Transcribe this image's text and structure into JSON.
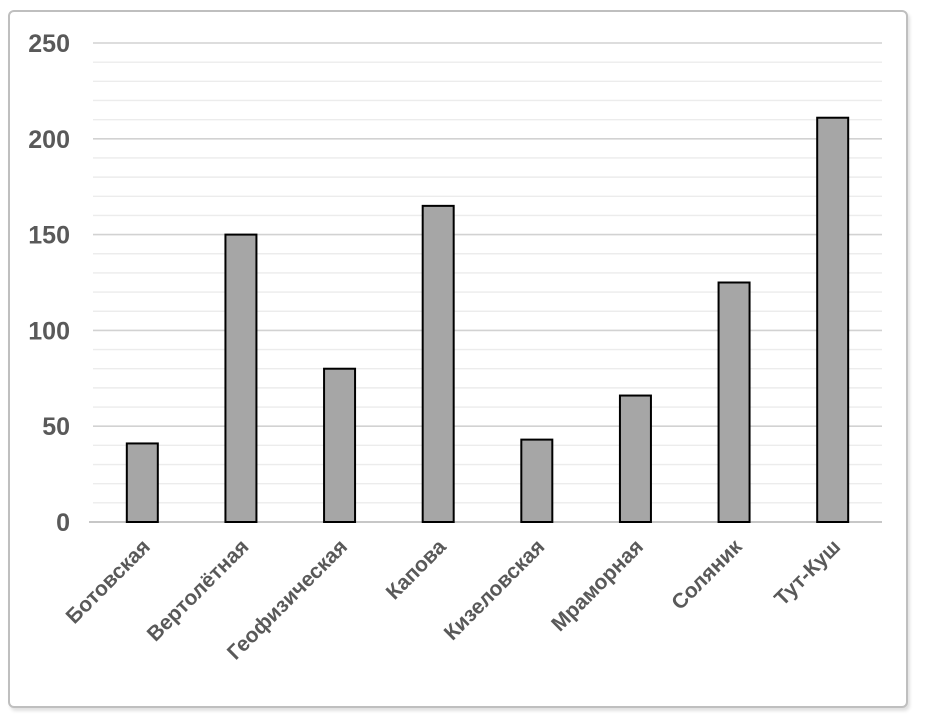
{
  "chart_data": {
    "type": "bar",
    "title": "",
    "xlabel": "",
    "ylabel": "",
    "categories": [
      "Ботовская",
      "Вертолётная",
      "Геофизическая",
      "Капова",
      "Кизеловская",
      "Мраморная",
      "Соляник",
      "Тут-Куш"
    ],
    "values": [
      41,
      150,
      80,
      165,
      43,
      66,
      125,
      211
    ],
    "ylim": [
      0,
      250
    ],
    "y_ticks": [
      0,
      50,
      100,
      150,
      200,
      250
    ],
    "minor_grid_step": 10,
    "grid": true,
    "legend": false,
    "bar_fill": "#a6a6a6",
    "bar_stroke": "#000000",
    "major_grid_color": "#d2d2d2",
    "minor_grid_color": "#ececec",
    "axis_line_color": "#bfbfbf",
    "tick_label_color": "#595959",
    "frame_border_color": "#bfbfbf",
    "background_color": "#ffffff"
  }
}
